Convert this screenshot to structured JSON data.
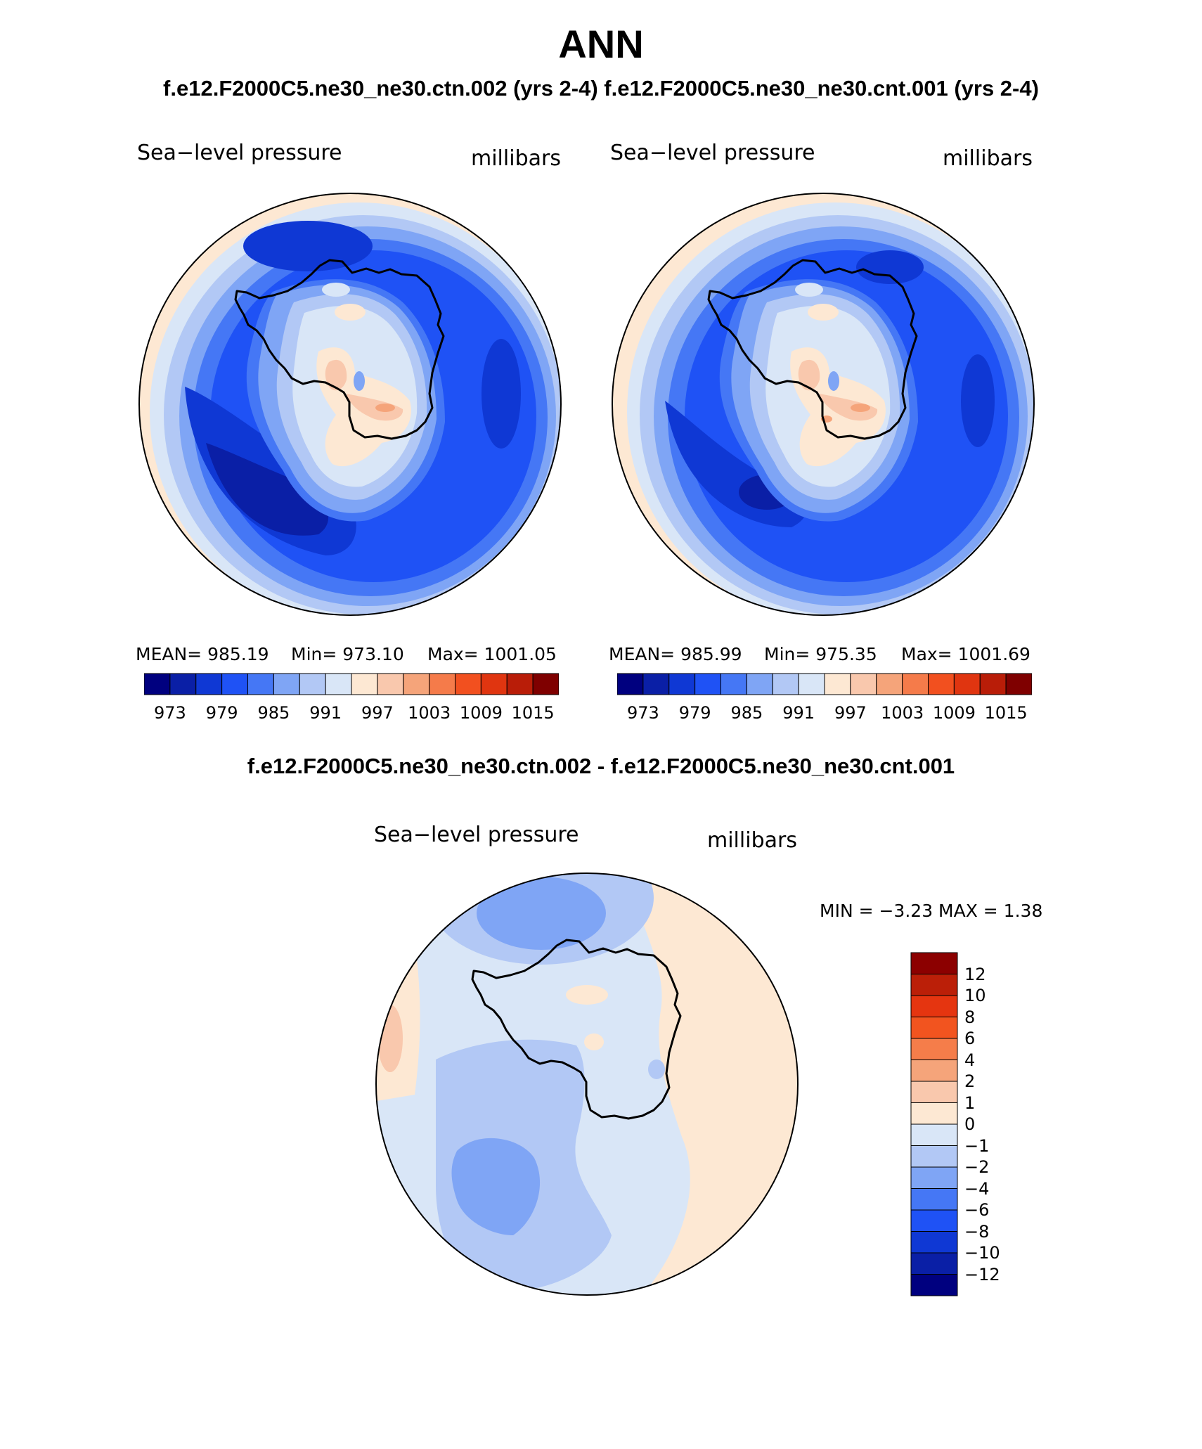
{
  "header": {
    "title": "ANN",
    "subtitle": "f.e12.F2000C5.ne30_ne30.ctn.002 (yrs 2-4) f.e12.F2000C5.ne30_ne30.cnt.001 (yrs 2-4)",
    "diff_title": "f.e12.F2000C5.ne30_ne30.ctn.002 - f.e12.F2000C5.ne30_ne30.cnt.001"
  },
  "panels": [
    {
      "variable": "Sea−level pressure",
      "units": "millibars",
      "mean_text": "MEAN= 985.19",
      "min_text": "Min= 973.10",
      "max_text": "Max= 1001.05"
    },
    {
      "variable": "Sea−level pressure",
      "units": "millibars",
      "mean_text": "MEAN= 985.99",
      "min_text": "Min= 975.35",
      "max_text": "Max= 1001.69"
    }
  ],
  "diff_panel": {
    "variable": "Sea−level pressure",
    "units": "millibars",
    "minmax_text": "MIN =   −3.23 MAX =    1.38"
  },
  "colorbar_top": {
    "colors": [
      "#00007f",
      "#0a1fa6",
      "#0f38d4",
      "#1f52f5",
      "#4577f5",
      "#7fa5f5",
      "#b2c8f5",
      "#d9e6f7",
      "#fde8d3",
      "#f9c8ad",
      "#f5a47a",
      "#f57b4a",
      "#f2501f",
      "#e03510",
      "#b91d08",
      "#7f0000"
    ],
    "tick_labels": [
      "973",
      "979",
      "985",
      "991",
      "997",
      "1003",
      "1009",
      "1015"
    ]
  },
  "colorbar_diff": {
    "colors_top_to_bottom": [
      "#8c0000",
      "#bb1f08",
      "#e53510",
      "#f2541f",
      "#f57d4a",
      "#f5a47a",
      "#f9c8ad",
      "#fde8d3",
      "#d9e6f7",
      "#b2c8f5",
      "#7fa5f5",
      "#4577f5",
      "#1f52f5",
      "#0f38d4",
      "#0a1fa6",
      "#00007f"
    ],
    "tick_labels": [
      "12",
      "10",
      "8",
      "6",
      "4",
      "2",
      "1",
      "0",
      "−1",
      "−2",
      "−4",
      "−6",
      "−8",
      "−10",
      "−12"
    ]
  },
  "colors": {
    "ocean_outer": "#fde8d3",
    "coastline": "#000000"
  }
}
